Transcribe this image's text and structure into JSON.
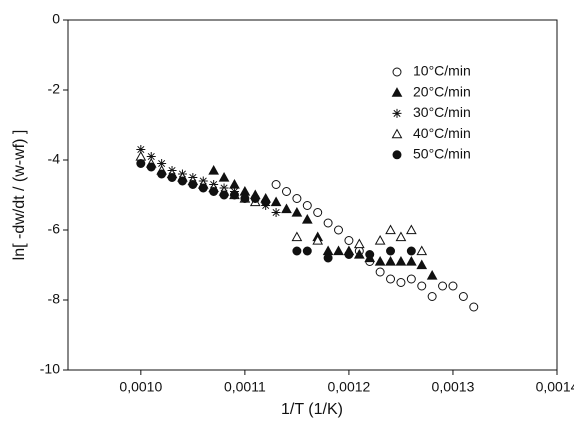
{
  "chart_data": {
    "type": "scatter",
    "x_label": "1/T (1/K)",
    "y_label": "ln[ -dw/dt / (w-wf) ]",
    "xlim": [
      0.00093,
      0.0014
    ],
    "ylim": [
      -10,
      0
    ],
    "xticks": [
      {
        "value": 0.001,
        "label": "0,0010"
      },
      {
        "value": 0.0011,
        "label": "0,0011"
      },
      {
        "value": 0.0012,
        "label": "0,0012"
      },
      {
        "value": 0.0013,
        "label": "0,0013"
      },
      {
        "value": 0.0014,
        "label": "0,0014"
      }
    ],
    "yticks": [
      -10,
      -8,
      -6,
      -4,
      -2,
      0
    ],
    "legend": "upper right",
    "series": [
      {
        "name": "10°C/min",
        "color": "#111111",
        "marker": "open-circle",
        "x": [
          0.00113,
          0.00114,
          0.00115,
          0.00116,
          0.00117,
          0.00118,
          0.00119,
          0.0012,
          0.00121,
          0.00122,
          0.00123,
          0.00124,
          0.00125,
          0.00126,
          0.00127,
          0.00128,
          0.00129,
          0.0013,
          0.00131,
          0.00132
        ],
        "values": [
          -4.7,
          -4.9,
          -5.1,
          -5.3,
          -5.5,
          -5.8,
          -6.0,
          -6.3,
          -6.6,
          -6.9,
          -7.2,
          -7.4,
          -7.5,
          -7.4,
          -7.6,
          -7.9,
          -7.6,
          -7.6,
          -7.9,
          -8.2
        ]
      },
      {
        "name": "20°C/min",
        "color": "#111111",
        "marker": "filled-triangle",
        "x": [
          0.00107,
          0.00108,
          0.00109,
          0.0011,
          0.00111,
          0.00112,
          0.00113,
          0.00114,
          0.00115,
          0.00116,
          0.00117,
          0.00118,
          0.00119,
          0.0012,
          0.00121,
          0.00122,
          0.00123,
          0.00124,
          0.00125,
          0.00126,
          0.00127,
          0.00128
        ],
        "values": [
          -4.3,
          -4.5,
          -4.7,
          -4.9,
          -5.0,
          -5.1,
          -5.2,
          -5.4,
          -5.5,
          -5.7,
          -6.2,
          -6.6,
          -6.6,
          -6.6,
          -6.7,
          -6.8,
          -6.9,
          -6.9,
          -6.9,
          -6.9,
          -7.0,
          -7.3
        ]
      },
      {
        "name": "30°C/min",
        "color": "#111111",
        "marker": "asterisk",
        "x": [
          0.001,
          0.00101,
          0.00102,
          0.00103,
          0.00104,
          0.00105,
          0.00106,
          0.00107,
          0.00108,
          0.00109,
          0.0011,
          0.00111,
          0.00112,
          0.00113
        ],
        "values": [
          -3.7,
          -3.9,
          -4.1,
          -4.3,
          -4.4,
          -4.5,
          -4.6,
          -4.7,
          -4.8,
          -4.9,
          -5.0,
          -5.1,
          -5.3,
          -5.5
        ]
      },
      {
        "name": "40°C/min",
        "color": "#111111",
        "marker": "open-triangle",
        "x": [
          0.001,
          0.00101,
          0.00102,
          0.00103,
          0.00104,
          0.00105,
          0.00106,
          0.00107,
          0.00108,
          0.00109,
          0.0011,
          0.00111,
          0.00115,
          0.00117,
          0.00121,
          0.00123,
          0.00124,
          0.00125,
          0.00126,
          0.00127
        ],
        "values": [
          -3.9,
          -4.1,
          -4.3,
          -4.4,
          -4.5,
          -4.6,
          -4.7,
          -4.8,
          -4.9,
          -5.0,
          -5.1,
          -5.2,
          -6.2,
          -6.3,
          -6.4,
          -6.3,
          -6.0,
          -6.2,
          -6.0,
          -6.6
        ]
      },
      {
        "name": "50°C/min",
        "color": "#111111",
        "marker": "filled-circle",
        "x": [
          0.001,
          0.00101,
          0.00102,
          0.00103,
          0.00104,
          0.00105,
          0.00106,
          0.00107,
          0.00108,
          0.00109,
          0.0011,
          0.00111,
          0.00112,
          0.00115,
          0.00116,
          0.00118,
          0.0012,
          0.00122,
          0.00124,
          0.00126
        ],
        "values": [
          -4.1,
          -4.2,
          -4.4,
          -4.5,
          -4.6,
          -4.7,
          -4.8,
          -4.9,
          -5.0,
          -5.0,
          -5.1,
          -5.1,
          -5.2,
          -6.6,
          -6.6,
          -6.8,
          -6.7,
          -6.7,
          -6.6,
          -6.6
        ]
      }
    ]
  }
}
